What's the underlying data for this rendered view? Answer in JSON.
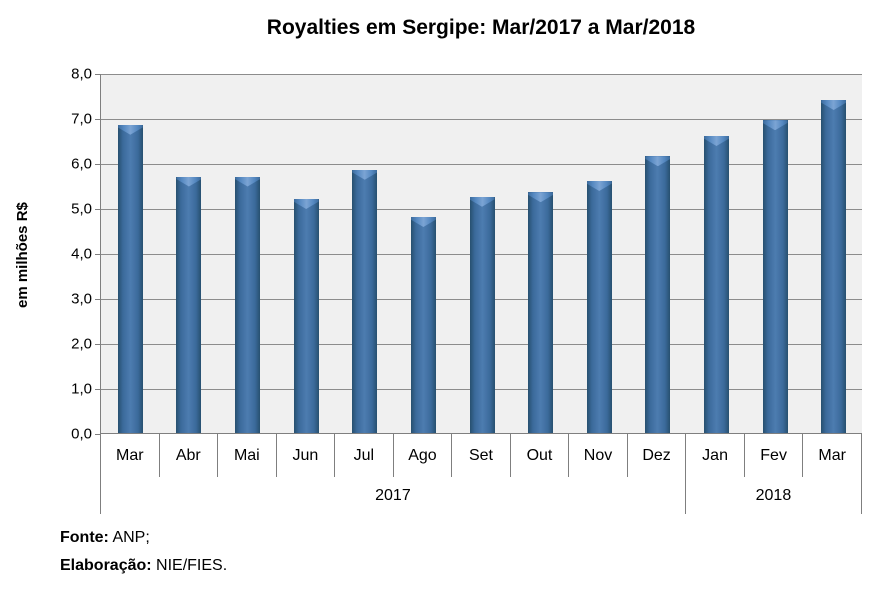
{
  "chart_data": {
    "type": "bar",
    "title": "Royalties em Sergipe: Mar/2017 a Mar/2018",
    "xlabel": "",
    "ylabel": "em milhões R$",
    "ylim": [
      0,
      8
    ],
    "ytick_step": 1,
    "ytick_labels": [
      "0,0",
      "1,0",
      "2,0",
      "3,0",
      "4,0",
      "5,0",
      "6,0",
      "7,0",
      "8,0"
    ],
    "grid": true,
    "legend_position": "none",
    "categories": [
      "Mar",
      "Abr",
      "Mai",
      "Jun",
      "Jul",
      "Ago",
      "Set",
      "Out",
      "Nov",
      "Dez",
      "Jan",
      "Fev",
      "Mar"
    ],
    "values": [
      6.85,
      5.7,
      5.7,
      5.2,
      5.85,
      4.8,
      5.25,
      5.35,
      5.6,
      6.15,
      6.6,
      6.95,
      7.4
    ],
    "year_groups": [
      {
        "label": "2017",
        "span": 10
      },
      {
        "label": "2018",
        "span": 3
      }
    ],
    "colors": {
      "bar_edge": "#27506f",
      "bar_body": "#3b6a9b",
      "bar_center": "#4d7cb0",
      "bar_cap_center": "#7ba4d4",
      "bar_cap_body": "#5588c0",
      "plot_bg": "#f0f0f0",
      "gridline": "#8c8c8c",
      "axis": "#7f7f7f",
      "text": "#000000"
    }
  },
  "footer": {
    "line1_label": "Fonte:",
    "line1_value": " ANP;",
    "line2_label": "Elaboração:",
    "line2_value": " NIE/FIES."
  }
}
